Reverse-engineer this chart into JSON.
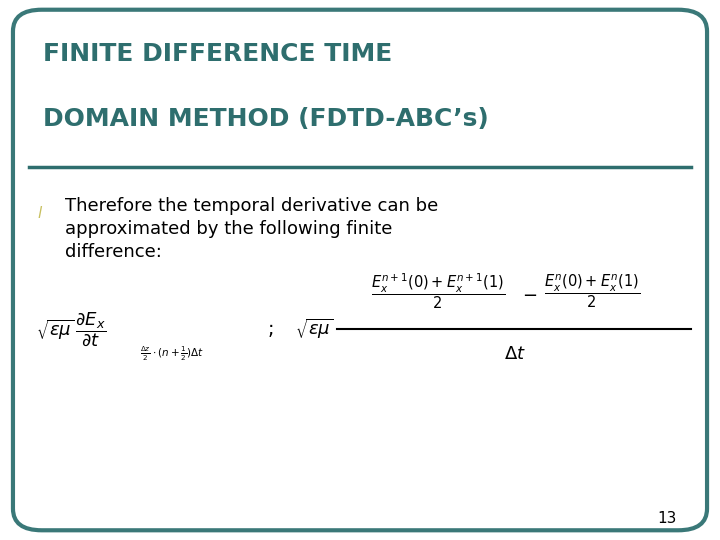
{
  "title_line1": "FINITE DIFFERENCE TIME",
  "title_line2": "DOMAIN METHOD (FDTD-ABC’s)",
  "title_color": "#2E6E6E",
  "bullet_color": "#C8C060",
  "bullet_text_line1": "Therefore the temporal derivative can be",
  "bullet_text_line2": "approximated by the following finite",
  "bullet_text_line3": "difference:",
  "bg_color": "#FFFFFF",
  "border_color": "#3A7878",
  "page_number": "13",
  "title_fontsize": 18,
  "body_fontsize": 13,
  "fig_width": 7.2,
  "fig_height": 5.4,
  "dpi": 100
}
